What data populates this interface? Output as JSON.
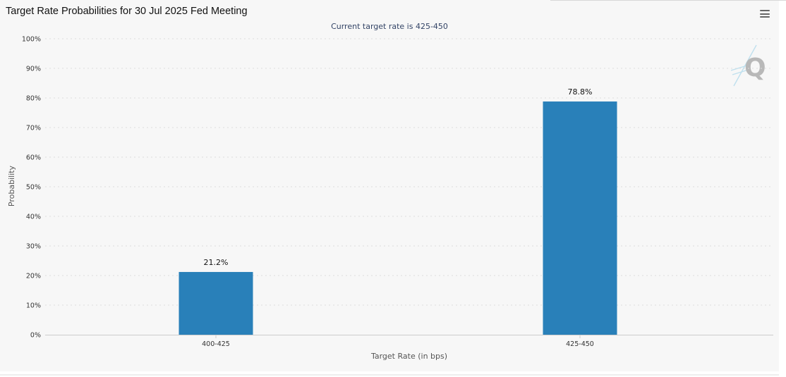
{
  "page": {
    "title": "Target Rate Probabilities for 30 Jul 2025 Fed Meeting",
    "subtitle": "Current target rate is 425-450"
  },
  "toolbar": {
    "menu_icon": "hamburger-menu-icon",
    "watermark_icon": "q-logo-icon"
  },
  "colors": {
    "bar": "#2980b9",
    "grid": "#dddddd",
    "axis": "#cccccc",
    "label": "#333333",
    "panel": "#f7f7f7"
  },
  "chart_data": {
    "type": "bar",
    "title": "Target Rate Probabilities for 30 Jul 2025 Fed Meeting",
    "subtitle": "Current target rate is 425-450",
    "xlabel": "Target Rate (in bps)",
    "ylabel": "Probability",
    "categories": [
      "400-425",
      "425-450"
    ],
    "values": [
      21.2,
      78.8
    ],
    "data_labels": [
      "21.2%",
      "78.8%"
    ],
    "ylim": [
      0,
      100
    ],
    "yticks": [
      0,
      10,
      20,
      30,
      40,
      50,
      60,
      70,
      80,
      90,
      100
    ],
    "ytick_labels": [
      "0%",
      "10%",
      "20%",
      "30%",
      "40%",
      "50%",
      "60%",
      "70%",
      "80%",
      "90%",
      "100%"
    ],
    "grid": true,
    "legend": false
  }
}
